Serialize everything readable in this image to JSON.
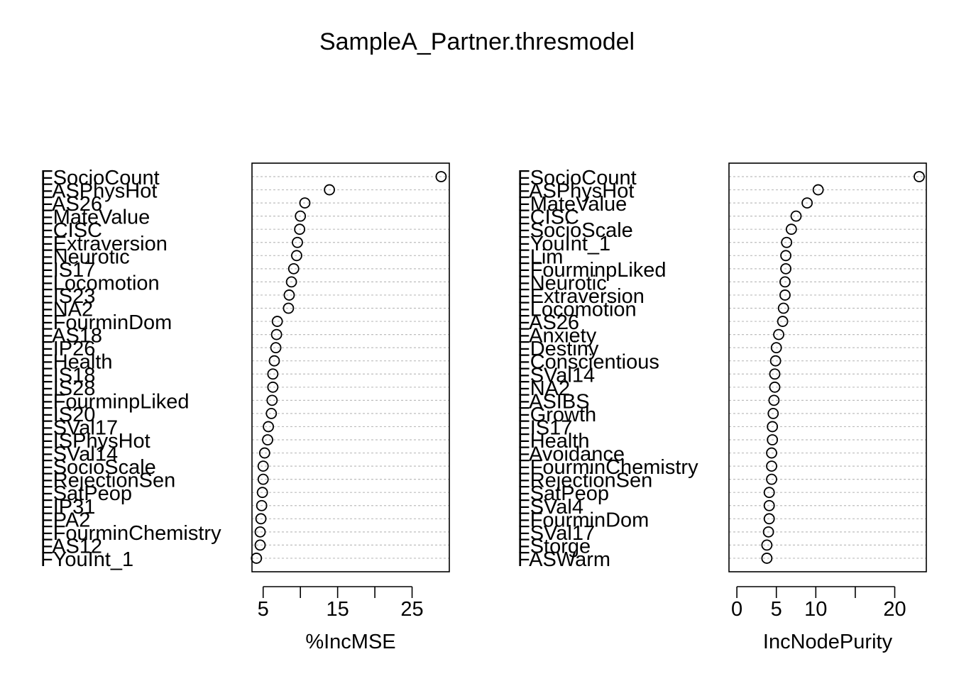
{
  "title": "SampleA_Partner.thresmodel",
  "chart_data": [
    {
      "type": "scatter",
      "xlabel": "%IncMSE",
      "xlim": [
        3.5,
        30.0
      ],
      "xticks": [
        5,
        10,
        15,
        20,
        25
      ],
      "xtick_labels": [
        "5",
        "",
        "15",
        "",
        "25"
      ],
      "grid": true,
      "categories": [
        "FSocioCount",
        "FASPhysHot",
        "FAS26",
        "FMateValue",
        "FCISC",
        "FExtraversion",
        "FNeurotic",
        "FIS17",
        "FLocomotion",
        "FIS23",
        "FNA2",
        "FFourminDom",
        "FAS18",
        "FIP26",
        "FHealth",
        "FIS18",
        "FIS28",
        "FFourminpLiked",
        "FIS20",
        "FSVal17",
        "FISPhysHot",
        "FSVal14",
        "FSocioScale",
        "FRejectionSen",
        "FSatPeop",
        "FIP31",
        "FPA2",
        "FFourminChemistry",
        "FAS12",
        "FYouInt_1"
      ],
      "values": [
        28.9,
        13.9,
        10.6,
        10.0,
        9.9,
        9.6,
        9.5,
        9.1,
        8.8,
        8.5,
        8.4,
        6.9,
        6.8,
        6.7,
        6.5,
        6.3,
        6.3,
        6.2,
        6.1,
        5.7,
        5.6,
        5.2,
        5.0,
        5.0,
        4.9,
        4.8,
        4.7,
        4.6,
        4.6,
        4.1
      ]
    },
    {
      "type": "scatter",
      "xlabel": "IncNodePurity",
      "xlim": [
        -1.0,
        24.0
      ],
      "xticks": [
        0,
        5,
        10,
        15,
        20
      ],
      "xtick_labels": [
        "0",
        "5",
        "10",
        "",
        "20"
      ],
      "grid": true,
      "categories": [
        "FSocioCount",
        "FASPhysHot",
        "FMateValue",
        "FCISC",
        "FSocioScale",
        "FYouInt_1",
        "FLim",
        "FFourminpLiked",
        "FNeurotic",
        "FExtraversion",
        "FLocomotion",
        "FAS26",
        "FAnxiety",
        "FDestiny",
        "FConscientious",
        "FSVal14",
        "FNA2",
        "FASIBS",
        "FGrowth",
        "FIS17",
        "FHealth",
        "FAvoidance",
        "FFourminChemistry",
        "FRejectionSen",
        "FSatPeop",
        "FSVal4",
        "FFourminDom",
        "FSVal17",
        "FStorge",
        "FASWarm"
      ],
      "values": [
        23.1,
        10.3,
        8.9,
        7.5,
        6.9,
        6.3,
        6.2,
        6.2,
        6.1,
        6.1,
        5.9,
        5.8,
        5.3,
        5.0,
        4.9,
        4.8,
        4.8,
        4.7,
        4.6,
        4.5,
        4.5,
        4.4,
        4.4,
        4.4,
        4.1,
        4.1,
        4.1,
        4.0,
        3.8,
        3.8
      ]
    }
  ]
}
